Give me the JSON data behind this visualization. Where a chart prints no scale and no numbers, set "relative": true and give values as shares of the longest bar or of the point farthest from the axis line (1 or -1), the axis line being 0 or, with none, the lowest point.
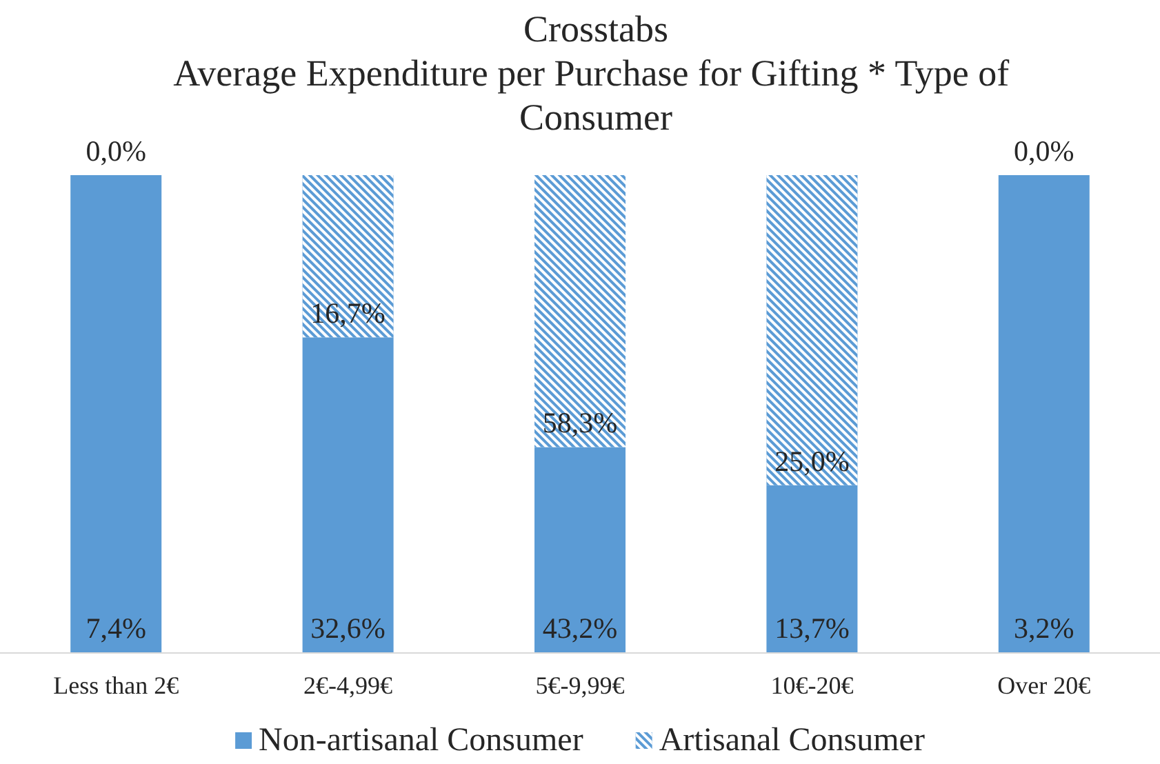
{
  "chart_data": {
    "type": "bar",
    "title": "Crosstabs",
    "subtitle": "Average Expenditure per Purchase for Gifting * Type of Consumer",
    "categories": [
      "Less than 2€",
      "2€-4,99€",
      "5€-9,99€",
      "10€-20€",
      "Over 20€"
    ],
    "relative": true,
    "stacked": true,
    "legend": "bottom",
    "series": [
      {
        "name": "Non-artisanal Consumer",
        "color": "#5b9bd5",
        "values": [
          1,
          0.66,
          0.43,
          0.35,
          1
        ]
      },
      {
        "name": "Artisanal Consumer",
        "color": "#5b9bd5",
        "values": [
          0,
          0.34,
          0.57,
          0.65,
          0
        ]
      }
    ],
    "annotations": [
      {
        "text": "0,0%",
        "x": "Less than 2€",
        "y": 1
      },
      {
        "text": "7,4%",
        "x": "Less than 2€",
        "y": 0
      },
      {
        "text": "16,7%",
        "x": "2€-4,99€",
        "y": 0.66
      },
      {
        "text": "32,6%",
        "x": "2€-4,99€",
        "y": 0
      },
      {
        "text": "58,3%",
        "x": "5€-9,99€",
        "y": 0.43
      },
      {
        "text": "43,2%",
        "x": "5€-9,99€",
        "y": 0
      },
      {
        "text": "25,0%",
        "x": "10€-20€",
        "y": 0.35
      },
      {
        "text": "13,7%",
        "x": "10€-20€",
        "y": 0
      },
      {
        "text": "0,0%",
        "x": "Over 20€",
        "y": 1
      },
      {
        "text": "3,2%",
        "x": "Over 20€",
        "y": 0
      }
    ]
  }
}
